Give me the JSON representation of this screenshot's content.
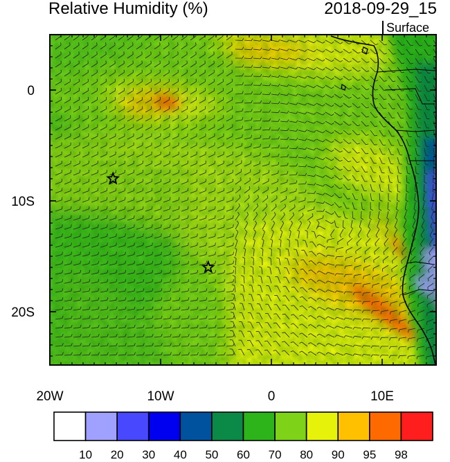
{
  "header": {
    "title": "Relative Humidity (%)",
    "datetime": "2018-09-29_15",
    "level": "Surface"
  },
  "map": {
    "region": "West Africa coast and equatorial/south Atlantic",
    "lon_range": [
      -20,
      15
    ],
    "lat_range": [
      -25,
      5
    ],
    "x_ticks": [
      {
        "value": -20,
        "label": "20W"
      },
      {
        "value": -10,
        "label": "10W"
      },
      {
        "value": 0,
        "label": "0"
      },
      {
        "value": 10,
        "label": "10E"
      }
    ],
    "y_ticks": [
      {
        "value": 0,
        "label": "0"
      },
      {
        "value": -10,
        "label": "10S"
      },
      {
        "value": -20,
        "label": "20S"
      }
    ],
    "markers": [
      {
        "name": "star",
        "lon": -14.3,
        "lat": -8.0
      },
      {
        "name": "star",
        "lon": -5.7,
        "lat": -16.0
      }
    ]
  },
  "colorbar": {
    "levels": [
      "10",
      "20",
      "30",
      "40",
      "50",
      "60",
      "70",
      "80",
      "90",
      "95",
      "98"
    ],
    "colors": [
      "#ffffff",
      "#a0a0ff",
      "#4848ff",
      "#0000f0",
      "#00529e",
      "#0a8a46",
      "#2db41a",
      "#7ed218",
      "#e6f20a",
      "#ffc000",
      "#ff6a00",
      "#ff1e1e"
    ]
  }
}
